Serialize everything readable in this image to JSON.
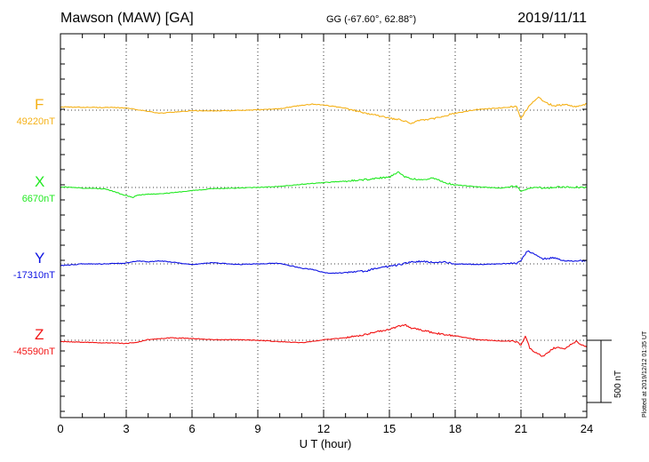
{
  "header": {
    "station": "Mawson (MAW)  [GA]",
    "coords": "GG (-67.60°,  62.88°)",
    "date": "2019/11/11"
  },
  "side_note": "Plotted at 2019/12/12 01:35 UT",
  "scale_bar": {
    "label": "500 nT",
    "value_nT": 500
  },
  "chart_data": {
    "type": "line",
    "title": "",
    "xlabel": "U T (hour)",
    "xlim": [
      0,
      24
    ],
    "xticks": [
      0,
      3,
      6,
      9,
      12,
      15,
      18,
      21,
      24
    ],
    "x_tick_labels": [
      "0",
      "3",
      "6",
      "9",
      "12",
      "15",
      "18",
      "21",
      "24"
    ],
    "grid": "dotted vertical at 3-hour intervals, dotted horizontal at each channel baseline",
    "units": "nT",
    "series": [
      {
        "name": "F",
        "baseline_label": "49220nT",
        "baseline_nT": 49220,
        "color": "#f5b117",
        "points": [
          [
            0,
            25
          ],
          [
            1,
            23
          ],
          [
            2,
            22
          ],
          [
            3,
            18
          ],
          [
            3.5,
            5
          ],
          [
            4.5,
            -25
          ],
          [
            5,
            -18
          ],
          [
            6,
            -5
          ],
          [
            7,
            -5
          ],
          [
            8,
            -3
          ],
          [
            9,
            2
          ],
          [
            10,
            12
          ],
          [
            11,
            40
          ],
          [
            11.5,
            48
          ],
          [
            12,
            42
          ],
          [
            13,
            15
          ],
          [
            14,
            -25
          ],
          [
            14.5,
            -45
          ],
          [
            15,
            -65
          ],
          [
            15.5,
            -80
          ],
          [
            16,
            -105
          ],
          [
            16.3,
            -85
          ],
          [
            17,
            -70
          ],
          [
            17.5,
            -45
          ],
          [
            18,
            -25
          ],
          [
            19,
            5
          ],
          [
            20,
            18
          ],
          [
            20.8,
            30
          ],
          [
            21,
            -70
          ],
          [
            21.2,
            -10
          ],
          [
            21.5,
            60
          ],
          [
            21.8,
            110
          ],
          [
            22,
            70
          ],
          [
            22.5,
            35
          ],
          [
            23,
            45
          ],
          [
            23.5,
            30
          ],
          [
            24,
            50
          ]
        ]
      },
      {
        "name": "X",
        "baseline_label": "6670nT",
        "baseline_nT": 6670,
        "color": "#22e922",
        "points": [
          [
            0,
            5
          ],
          [
            1,
            -5
          ],
          [
            2,
            -10
          ],
          [
            3,
            -65
          ],
          [
            3.3,
            -80
          ],
          [
            3.5,
            -60
          ],
          [
            4,
            -55
          ],
          [
            5,
            -45
          ],
          [
            6,
            -25
          ],
          [
            7,
            -8
          ],
          [
            8,
            -5
          ],
          [
            9,
            0
          ],
          [
            10,
            10
          ],
          [
            11,
            25
          ],
          [
            12,
            40
          ],
          [
            13,
            50
          ],
          [
            14,
            65
          ],
          [
            15,
            85
          ],
          [
            15.4,
            120
          ],
          [
            15.7,
            85
          ],
          [
            16,
            70
          ],
          [
            16.5,
            60
          ],
          [
            17,
            75
          ],
          [
            17.5,
            40
          ],
          [
            18,
            20
          ],
          [
            19,
            5
          ],
          [
            20,
            -5
          ],
          [
            20.8,
            10
          ],
          [
            21,
            -30
          ],
          [
            21.3,
            -15
          ],
          [
            21.6,
            5
          ],
          [
            22,
            -5
          ],
          [
            23,
            5
          ],
          [
            24,
            0
          ]
        ]
      },
      {
        "name": "Y",
        "baseline_label": "-17310nT",
        "baseline_nT": -17310,
        "color": "#0d12e2",
        "points": [
          [
            0,
            -15
          ],
          [
            1,
            0
          ],
          [
            2,
            0
          ],
          [
            3,
            5
          ],
          [
            3.5,
            25
          ],
          [
            4,
            15
          ],
          [
            4.5,
            25
          ],
          [
            5,
            15
          ],
          [
            6,
            -5
          ],
          [
            7,
            10
          ],
          [
            8,
            -5
          ],
          [
            9,
            0
          ],
          [
            10,
            5
          ],
          [
            10.5,
            -15
          ],
          [
            11,
            -35
          ],
          [
            11.5,
            -45
          ],
          [
            12,
            -70
          ],
          [
            12.5,
            -75
          ],
          [
            13,
            -70
          ],
          [
            14,
            -55
          ],
          [
            14.5,
            -30
          ],
          [
            15,
            -20
          ],
          [
            15.5,
            -5
          ],
          [
            16,
            15
          ],
          [
            16.5,
            20
          ],
          [
            17,
            10
          ],
          [
            17.5,
            15
          ],
          [
            18,
            0
          ],
          [
            19,
            -5
          ],
          [
            20,
            0
          ],
          [
            20.8,
            5
          ],
          [
            21,
            30
          ],
          [
            21.3,
            105
          ],
          [
            21.6,
            80
          ],
          [
            22,
            40
          ],
          [
            22.5,
            50
          ],
          [
            23,
            20
          ],
          [
            24,
            25
          ]
        ]
      },
      {
        "name": "Z",
        "baseline_label": "-45590nT",
        "baseline_nT": -45590,
        "color": "#f21313",
        "points": [
          [
            0,
            -10
          ],
          [
            1,
            -15
          ],
          [
            2,
            -20
          ],
          [
            3,
            -25
          ],
          [
            3.5,
            -15
          ],
          [
            4,
            5
          ],
          [
            5,
            20
          ],
          [
            6,
            15
          ],
          [
            7,
            5
          ],
          [
            8,
            5
          ],
          [
            9,
            0
          ],
          [
            10,
            -10
          ],
          [
            11,
            -20
          ],
          [
            12,
            5
          ],
          [
            13,
            20
          ],
          [
            14,
            50
          ],
          [
            14.5,
            70
          ],
          [
            15,
            90
          ],
          [
            15.7,
            125
          ],
          [
            16,
            100
          ],
          [
            16.5,
            80
          ],
          [
            17,
            60
          ],
          [
            18,
            35
          ],
          [
            19,
            5
          ],
          [
            20,
            -5
          ],
          [
            20.8,
            -10
          ],
          [
            21,
            -45
          ],
          [
            21.2,
            40
          ],
          [
            21.4,
            -60
          ],
          [
            21.6,
            -95
          ],
          [
            22,
            -130
          ],
          [
            22.5,
            -60
          ],
          [
            23,
            -65
          ],
          [
            23.5,
            -10
          ],
          [
            24,
            -55
          ]
        ]
      }
    ]
  }
}
